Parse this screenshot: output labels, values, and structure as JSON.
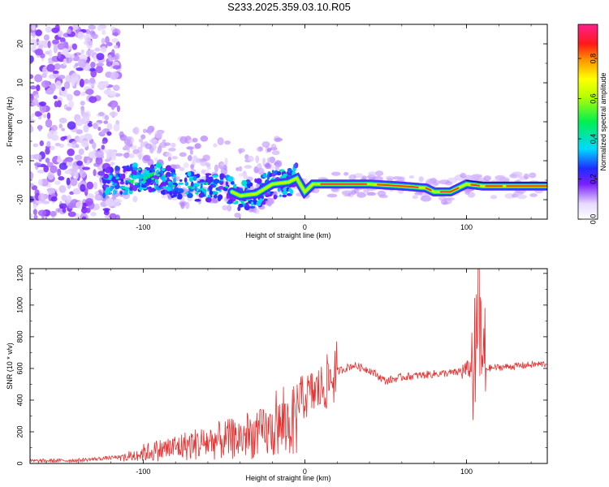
{
  "title": "S233.2025.359.03.10.R05",
  "chart_data": [
    {
      "type": "heatmap",
      "xlabel": "Height of straight line (km)",
      "ylabel": "Frequency (Hz)",
      "xlim": [
        -170,
        150
      ],
      "ylim": [
        -25,
        25
      ],
      "x_ticks": [
        -100,
        0,
        100
      ],
      "y_ticks": [
        -20,
        -10,
        0,
        10,
        20
      ],
      "colorbar": {
        "label": "Normalized spectral amplitude",
        "range": [
          0,
          0.97
        ],
        "ticks": [
          0.0,
          0.2,
          0.4,
          0.6,
          0.8
        ]
      },
      "dominant_band_frequency": [
        [
          -125,
          -15.5
        ],
        [
          -110,
          -15
        ],
        [
          -100,
          -14
        ],
        [
          -90,
          -14.5
        ],
        [
          -80,
          -16
        ],
        [
          -70,
          -16.5
        ],
        [
          -60,
          -17
        ],
        [
          -50,
          -17
        ],
        [
          -40,
          -19
        ],
        [
          -30,
          -18.5
        ],
        [
          -20,
          -16
        ],
        [
          -10,
          -15.5
        ],
        [
          -5,
          -14.5
        ],
        [
          0,
          -18
        ],
        [
          5,
          -16
        ],
        [
          20,
          -16
        ],
        [
          40,
          -16
        ],
        [
          60,
          -16.5
        ],
        [
          75,
          -17
        ],
        [
          80,
          -18
        ],
        [
          90,
          -18
        ],
        [
          100,
          -16
        ],
        [
          110,
          -16.5
        ],
        [
          130,
          -16.5
        ],
        [
          150,
          -16.5
        ]
      ]
    },
    {
      "type": "line",
      "xlabel": "Height of straight line (km)",
      "ylabel": "SNR (10 * v/v)",
      "xlim": [
        -170,
        150
      ],
      "ylim": [
        0,
        1230
      ],
      "x_ticks": [
        -100,
        0,
        100
      ],
      "y_ticks": [
        0,
        200,
        400,
        600,
        800,
        1000,
        1200
      ],
      "series_color": "#e83030",
      "envelope": [
        [
          -170,
          15
        ],
        [
          -140,
          20
        ],
        [
          -115,
          40
        ],
        [
          -100,
          100
        ],
        [
          -80,
          150
        ],
        [
          -60,
          200
        ],
        [
          -40,
          240
        ],
        [
          -20,
          300
        ],
        [
          -10,
          380
        ],
        [
          0,
          420
        ],
        [
          10,
          470
        ],
        [
          20,
          580
        ],
        [
          30,
          620
        ],
        [
          40,
          590
        ],
        [
          50,
          520
        ],
        [
          60,
          545
        ],
        [
          80,
          565
        ],
        [
          95,
          575
        ],
        [
          103,
          600
        ],
        [
          108,
          700
        ],
        [
          112,
          600
        ],
        [
          130,
          615
        ],
        [
          150,
          630
        ]
      ]
    }
  ]
}
